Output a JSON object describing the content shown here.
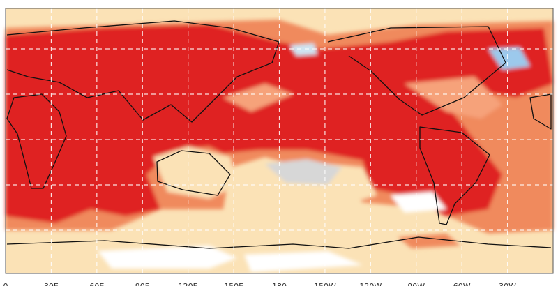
{
  "map": {
    "x_labels": [
      "0",
      "30E",
      "60E",
      "90E",
      "120E",
      "150E",
      "180",
      "150W",
      "120W",
      "90W",
      "60W",
      "30W"
    ]
  }
}
